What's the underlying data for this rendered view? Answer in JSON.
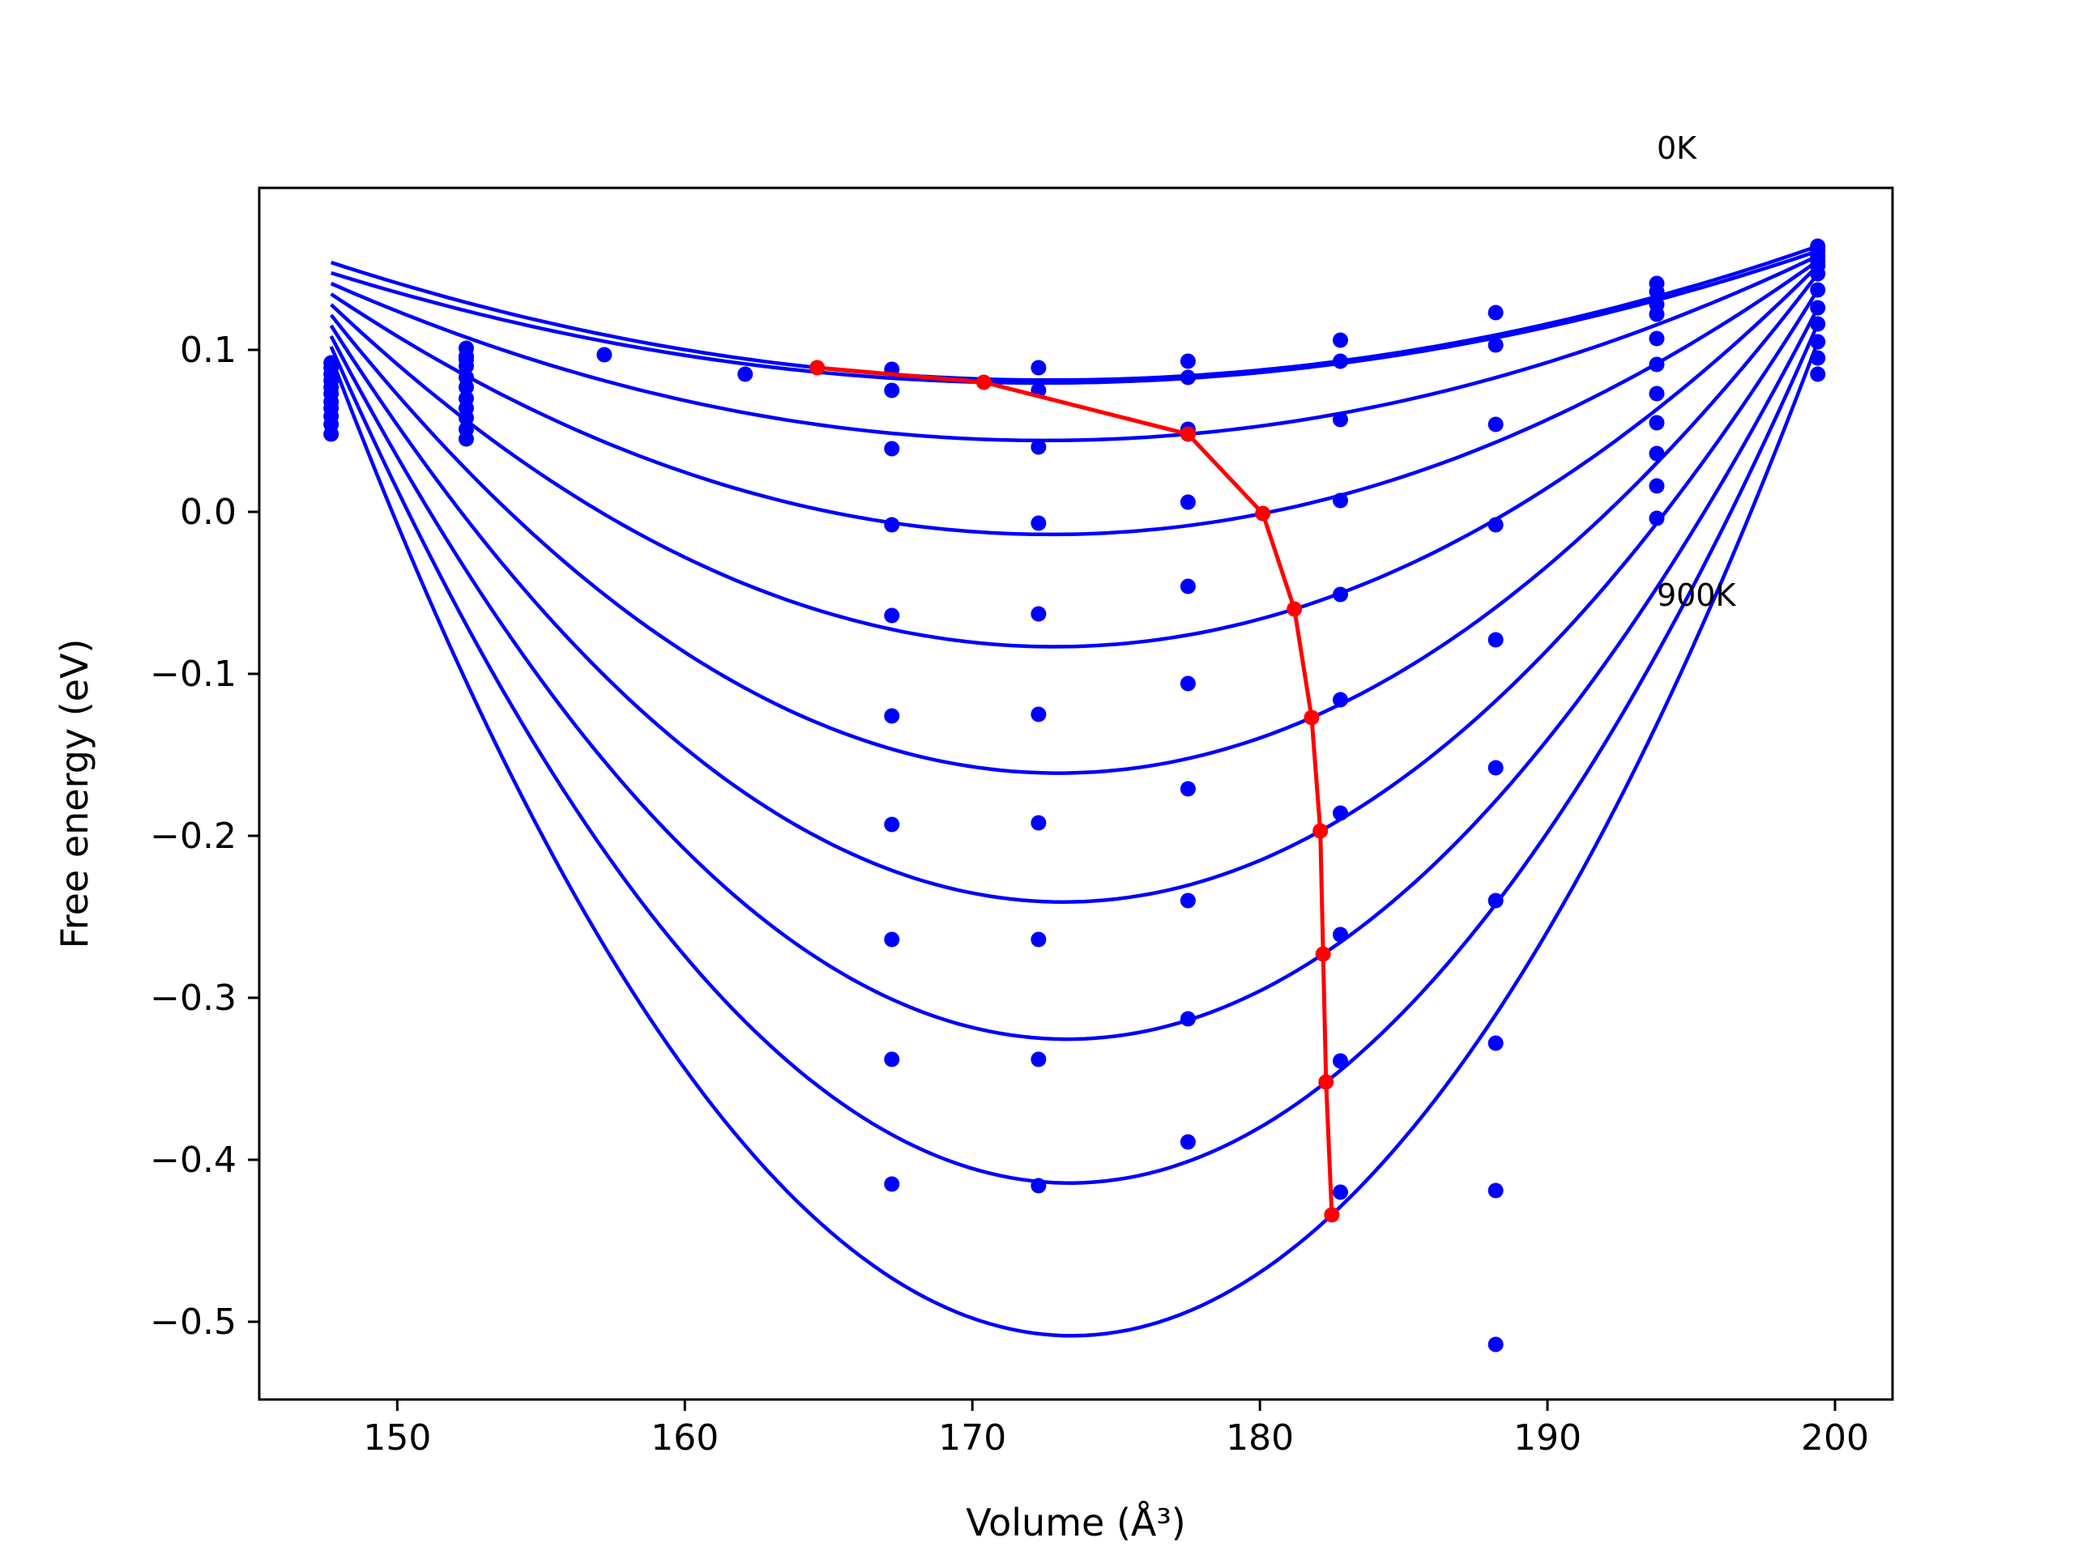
{
  "chart_data": {
    "type": "line",
    "title": "",
    "xlabel": "Volume (Å³)",
    "ylabel": "Free energy (eV)",
    "xlim": [
      145.2,
      202.0
    ],
    "ylim": [
      -0.548,
      0.2
    ],
    "xticks": [
      150,
      160,
      170,
      180,
      190,
      200
    ],
    "yticks": [
      0.1,
      0.0,
      -0.1,
      -0.2,
      -0.3,
      -0.4,
      -0.5
    ],
    "xtick_labels": [
      "150",
      "160",
      "170",
      "180",
      "190",
      "200"
    ],
    "ytick_labels": [
      "0.1",
      "0.0",
      "−0.1",
      "−0.2",
      "−0.3",
      "−0.4",
      "−0.5"
    ],
    "grid": false,
    "legend": "none",
    "annotations": [
      {
        "text": "0K",
        "x": 193.8,
        "y": 0.218
      },
      {
        "text": "900K",
        "x": 193.8,
        "y": -0.058
      }
    ],
    "colors": {
      "fit": "#0000ff",
      "points": "#0000ff",
      "minima": "#ff0000",
      "axes": "#000000"
    },
    "volumes": [
      147.7,
      152.4,
      157.2,
      162.1,
      167.2,
      172.3,
      177.5,
      182.8,
      188.2,
      193.8,
      199.4
    ],
    "series": [
      {
        "energies": [
          0.092,
          0.094,
          0.097,
          0.085,
          0.088,
          0.089,
          0.093,
          0.106,
          0.123,
          0.141,
          0.164
        ],
        "fit_min": [
          164.6,
          0.089
        ]
      },
      {
        "energies": [
          0.089,
          0.096,
          null,
          null,
          0.075,
          0.075,
          0.083,
          0.093,
          0.103,
          0.136,
          0.161
        ],
        "fit_min": [
          170.4,
          0.08
        ]
      },
      {
        "energies": [
          0.085,
          0.101,
          null,
          null,
          0.039,
          0.04,
          0.051,
          0.057,
          0.054,
          0.128,
          0.158
        ],
        "fit_min": [
          177.5,
          0.048
        ]
      },
      {
        "energies": [
          0.081,
          0.09,
          null,
          null,
          -0.008,
          -0.007,
          0.006,
          0.007,
          -0.008,
          0.122,
          0.155
        ],
        "fit_min": [
          180.1,
          -0.001
        ]
      },
      {
        "energies": [
          0.077,
          0.083,
          null,
          null,
          -0.064,
          -0.063,
          -0.046,
          -0.051,
          -0.079,
          0.107,
          0.152
        ],
        "fit_min": [
          181.2,
          -0.06
        ]
      },
      {
        "energies": [
          0.073,
          0.077,
          null,
          null,
          -0.126,
          -0.125,
          -0.106,
          -0.116,
          -0.158,
          0.091,
          0.147
        ],
        "fit_min": [
          181.8,
          -0.127
        ]
      },
      {
        "energies": [
          0.068,
          0.07,
          null,
          null,
          -0.193,
          -0.192,
          -0.171,
          -0.186,
          -0.24,
          0.073,
          0.137
        ],
        "fit_min": [
          182.1,
          -0.197
        ]
      },
      {
        "energies": [
          0.064,
          0.064,
          null,
          null,
          -0.264,
          -0.264,
          -0.24,
          -0.261,
          -0.328,
          0.055,
          0.126
        ],
        "fit_min": [
          182.2,
          -0.273
        ]
      },
      {
        "energies": [
          0.059,
          0.058,
          null,
          null,
          -0.338,
          -0.338,
          -0.313,
          -0.339,
          -0.419,
          0.036,
          0.116
        ],
        "fit_min": [
          182.3,
          -0.352
        ]
      },
      {
        "energies": [
          0.054,
          0.051,
          null,
          null,
          -0.415,
          -0.416,
          -0.389,
          -0.42,
          -0.514,
          0.016,
          0.105
        ],
        "fit_min": [
          182.5,
          -0.434
        ]
      },
      {
        "energies": [
          0.048,
          0.045,
          null,
          null,
          null,
          null,
          null,
          null,
          null,
          -0.004,
          0.095
        ],
        "fit_min": null
      },
      {
        "energies": [
          null,
          null,
          null,
          null,
          null,
          null,
          null,
          null,
          null,
          null,
          0.085
        ],
        "fit_min": null
      }
    ],
    "minima_curve": [
      [
        164.6,
        0.089
      ],
      [
        170.4,
        0.08
      ],
      [
        177.5,
        0.048
      ],
      [
        180.1,
        -0.001
      ],
      [
        181.2,
        -0.06
      ],
      [
        181.8,
        -0.127
      ],
      [
        182.1,
        -0.197
      ],
      [
        182.2,
        -0.273
      ],
      [
        182.3,
        -0.352
      ],
      [
        182.5,
        -0.434
      ]
    ]
  }
}
